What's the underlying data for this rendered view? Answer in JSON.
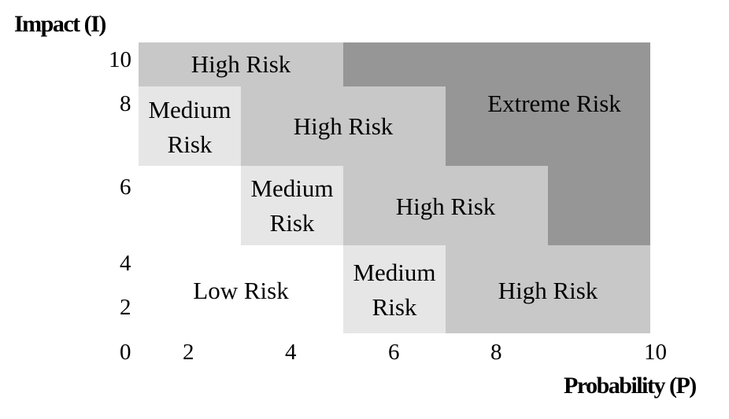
{
  "axes": {
    "y_title": "Impact (I)",
    "x_title": "Probability (P)",
    "y_ticks": [
      "10",
      "8",
      "6",
      "4",
      "2",
      "0"
    ],
    "x_ticks": [
      "2",
      "4",
      "6",
      "8",
      "10"
    ]
  },
  "zones": {
    "high_top": "High Risk",
    "extreme": "Extreme Risk",
    "medium_1": "Medium\nRisk",
    "high_mid": "High Risk",
    "medium_2": "Medium\nRisk",
    "high_center": "High Risk",
    "low": "Low Risk",
    "medium_3": "Medium\nRisk",
    "high_bottom": "High Risk"
  },
  "colors": {
    "low": "#ffffff",
    "medium": "#e6e6e6",
    "high": "#c8c8c8",
    "extreme": "#969696"
  }
}
